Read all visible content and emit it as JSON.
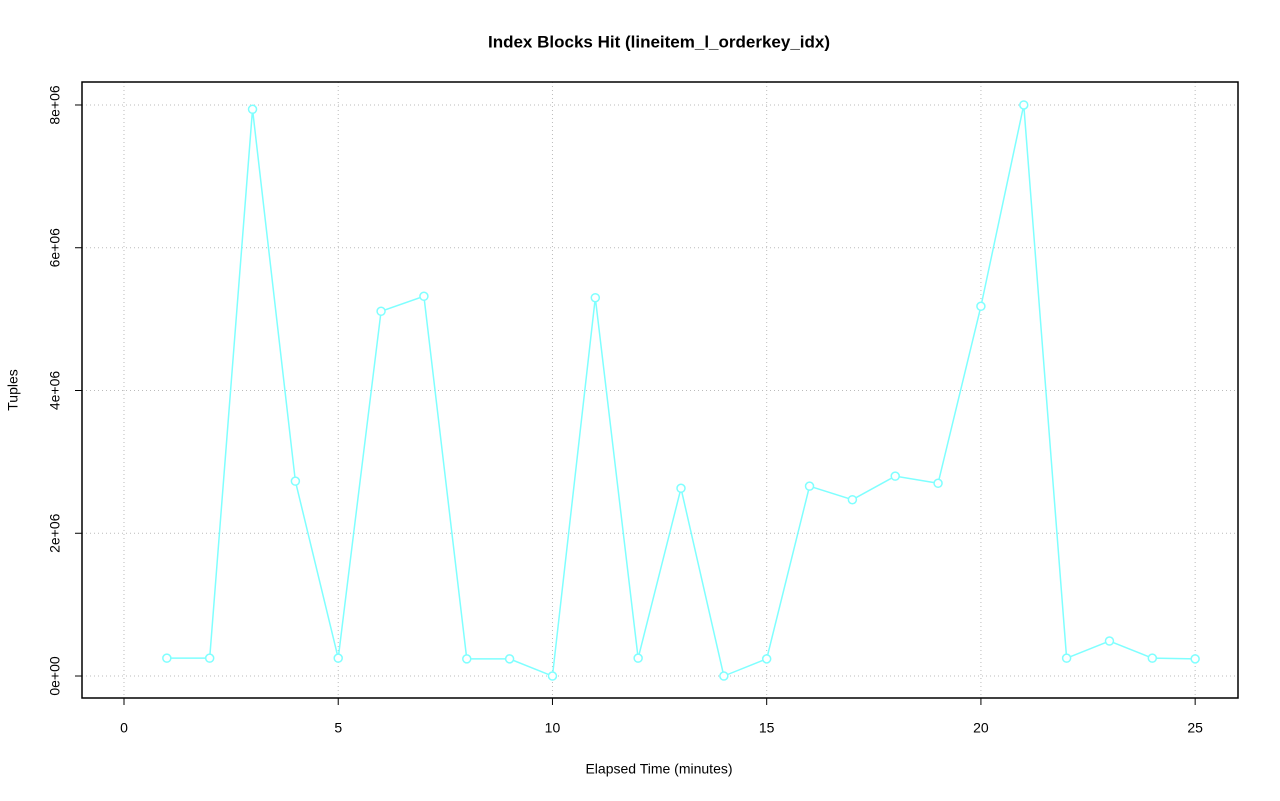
{
  "chart_data": {
    "type": "line",
    "title": "Index Blocks Hit (lineitem_l_orderkey_idx)",
    "x_label": "Elapsed Time (minutes)",
    "y_label": "Tuples",
    "x": [
      1,
      2,
      3,
      4,
      5,
      6,
      7,
      8,
      9,
      10,
      11,
      12,
      13,
      14,
      15,
      16,
      17,
      18,
      19,
      20,
      21,
      22,
      23,
      24,
      25
    ],
    "values": [
      250000,
      250000,
      7940000,
      2730000,
      250000,
      5110000,
      5320000,
      240000,
      240000,
      0,
      5300000,
      250000,
      2630000,
      0,
      240000,
      2660000,
      2470000,
      2800000,
      2700000,
      5180000,
      8000000,
      250000,
      490000,
      250000,
      240000
    ],
    "color": "#7fffff",
    "xlim": [
      -0.98,
      26.0
    ],
    "ylim": [
      -308000,
      8322000
    ],
    "xticks": [
      0,
      5,
      10,
      15,
      20,
      25
    ],
    "yticks": [
      {
        "value": 0,
        "label": "0e+00"
      },
      {
        "value": 2000000,
        "label": "2e+06"
      },
      {
        "value": 4000000,
        "label": "4e+06"
      },
      {
        "value": 6000000,
        "label": "6e+06"
      },
      {
        "value": 8000000,
        "label": "8e+06"
      }
    ],
    "grid": true
  }
}
